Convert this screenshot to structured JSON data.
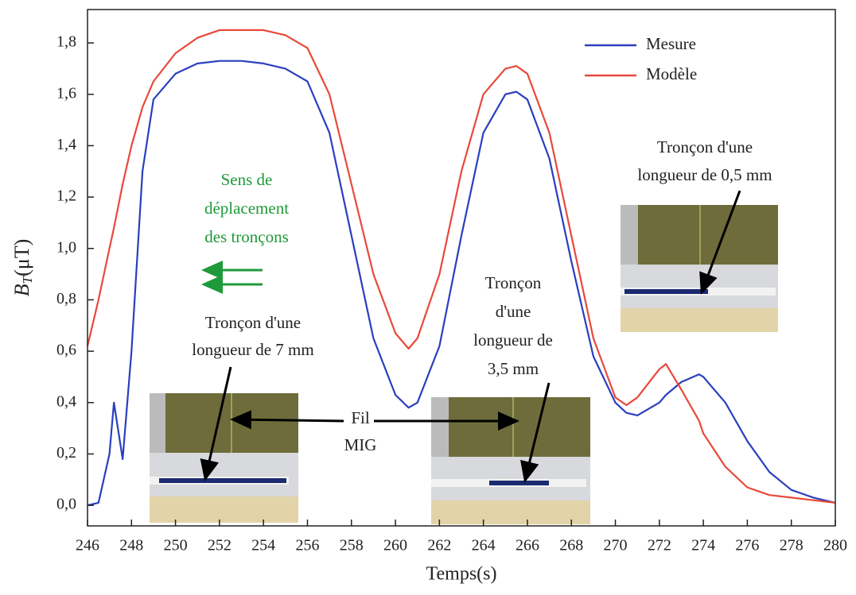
{
  "chart_data": {
    "type": "line",
    "xlabel": "Temps(s)",
    "ylabel": {
      "symbol": "B",
      "subscript": "T",
      "unit": "(μT)"
    },
    "x": [
      246,
      246.5,
      247,
      247.2,
      247.6,
      248,
      248.5,
      249,
      250,
      251,
      252,
      253,
      254,
      255,
      256,
      257,
      258,
      259,
      260,
      260.6,
      261,
      262,
      263,
      264,
      265,
      265.5,
      266,
      267,
      268,
      269,
      270,
      270.5,
      271,
      272,
      272.3,
      273,
      273.8,
      274,
      275,
      276,
      277,
      278,
      279,
      280
    ],
    "series": [
      {
        "name": "Mesure",
        "color": "#2a3fbf",
        "values": [
          0.0,
          0.01,
          0.2,
          0.4,
          0.18,
          0.6,
          1.3,
          1.58,
          1.68,
          1.72,
          1.73,
          1.73,
          1.72,
          1.7,
          1.65,
          1.45,
          1.05,
          0.65,
          0.43,
          0.38,
          0.4,
          0.62,
          1.05,
          1.45,
          1.6,
          1.61,
          1.58,
          1.35,
          0.95,
          0.58,
          0.4,
          0.36,
          0.35,
          0.4,
          0.43,
          0.48,
          0.51,
          0.5,
          0.4,
          0.25,
          0.13,
          0.06,
          0.03,
          0.01
        ]
      },
      {
        "name": "Modèle",
        "color": "#e8493a",
        "values": [
          0.62,
          0.8,
          1.0,
          1.08,
          1.25,
          1.4,
          1.55,
          1.65,
          1.76,
          1.82,
          1.85,
          1.85,
          1.85,
          1.83,
          1.78,
          1.6,
          1.25,
          0.9,
          0.67,
          0.61,
          0.65,
          0.9,
          1.3,
          1.6,
          1.7,
          1.71,
          1.68,
          1.45,
          1.05,
          0.65,
          0.42,
          0.39,
          0.42,
          0.53,
          0.55,
          0.45,
          0.33,
          0.28,
          0.15,
          0.07,
          0.04,
          0.03,
          0.02,
          0.01
        ]
      }
    ],
    "xlim": [
      246,
      280
    ],
    "xticks": [
      246,
      248,
      250,
      252,
      254,
      256,
      258,
      260,
      262,
      264,
      266,
      268,
      270,
      272,
      274,
      276,
      278,
      280
    ],
    "ylim": [
      -0.08,
      1.93
    ],
    "yticks": [
      {
        "value": 0,
        "label": "0,0"
      },
      {
        "value": 0.2,
        "label": "0,2"
      },
      {
        "value": 0.4,
        "label": "0,4"
      },
      {
        "value": 0.6,
        "label": "0,6"
      },
      {
        "value": 0.8,
        "label": "0,8"
      },
      {
        "value": 1.0,
        "label": "1,0"
      },
      {
        "value": 1.2,
        "label": "1,2"
      },
      {
        "value": 1.4,
        "label": "1,4"
      },
      {
        "value": 1.6,
        "label": "1,6"
      },
      {
        "value": 1.8,
        "label": "1,8"
      }
    ],
    "legend": "top-right",
    "annotations": {
      "direction": [
        "Sens de",
        "déplacement",
        "des tronçons"
      ],
      "piece_7mm": [
        "Tronçon d'une",
        "longueur de 7 mm"
      ],
      "wire": [
        "Fil",
        "MIG"
      ],
      "piece_3_5mm": [
        "Tronçon",
        "d'une",
        "longueur de",
        "3,5 mm"
      ],
      "piece_0_5mm": [
        "Tronçon d'une",
        "longueur de 0,5 mm"
      ]
    }
  }
}
